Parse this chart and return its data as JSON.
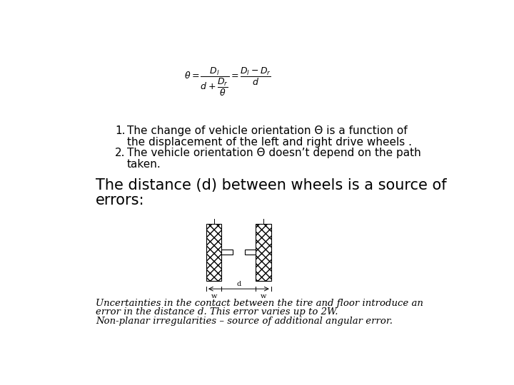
{
  "background_color": "#ffffff",
  "bullet1_line1": "The change of vehicle orientation Θ is a function of",
  "bullet1_line2": "the displacement of the left and right drive wheels .",
  "bullet2_line1": "The vehicle orientation Θ doesn’t depend on the path",
  "bullet2_line2": "taken.",
  "heading_line1": "The distance (d) between wheels is a source of",
  "heading_line2": "errors:",
  "italic_line1": "Uncertainties in the contact between the tire and floor introduce an",
  "italic_line2": "error in the distance d. This error varies up to 2W.",
  "italic_line3": "Non-planar irregularities – source of additional angular error.",
  "body_fontsize": 11,
  "heading_fontsize": 15,
  "italic_fontsize": 9.5,
  "formula_fontsize": 9
}
